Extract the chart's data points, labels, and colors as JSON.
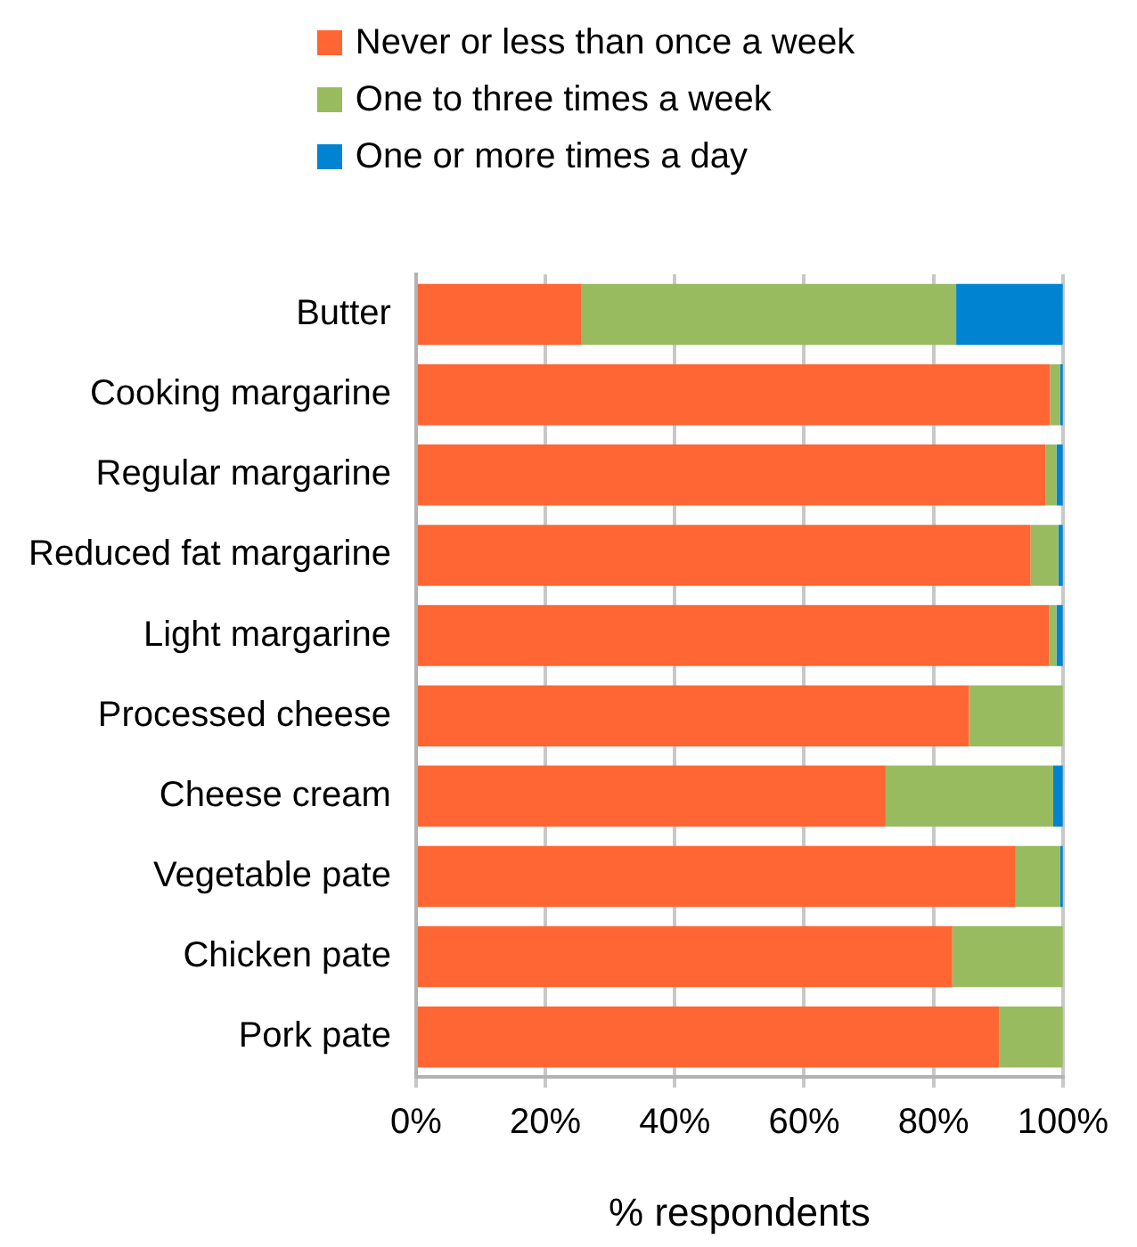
{
  "chart_data": {
    "type": "bar",
    "orientation": "horizontal",
    "stacked": true,
    "xlabel": "% respondents",
    "categories": [
      "Butter",
      "Cooking margarine",
      "Regular margarine",
      "Reduced fat margarine",
      "Light margarine",
      "Processed cheese",
      "Cheese cream",
      "Vegetable pate",
      "Chicken pate",
      "Pork pate"
    ],
    "series": [
      {
        "name": "Never or less than once a week",
        "color": "#ff6633",
        "values": [
          25.5,
          98,
          97.3,
          95,
          97.9,
          85.5,
          72.6,
          92.7,
          82.9,
          90.1
        ]
      },
      {
        "name": "One to three times a week",
        "color": "#99bb5f",
        "values": [
          58,
          1.6,
          1.7,
          4.3,
          1.1,
          14.5,
          25.9,
          6.9,
          17.1,
          9.9
        ]
      },
      {
        "name": "One or more times a day",
        "color": "#0084d1",
        "values": [
          16.5,
          0.4,
          1,
          0.7,
          1,
          0,
          1.5,
          0.4,
          0,
          0
        ]
      }
    ],
    "xlim": [
      0,
      100
    ],
    "xticks": [
      {
        "value": 0,
        "label": "0%"
      },
      {
        "value": 20,
        "label": "20%"
      },
      {
        "value": 40,
        "label": "40%"
      },
      {
        "value": 60,
        "label": "60%"
      },
      {
        "value": 80,
        "label": "80%"
      },
      {
        "value": 100,
        "label": "100%"
      }
    ],
    "grid": "x",
    "legend": "top"
  }
}
